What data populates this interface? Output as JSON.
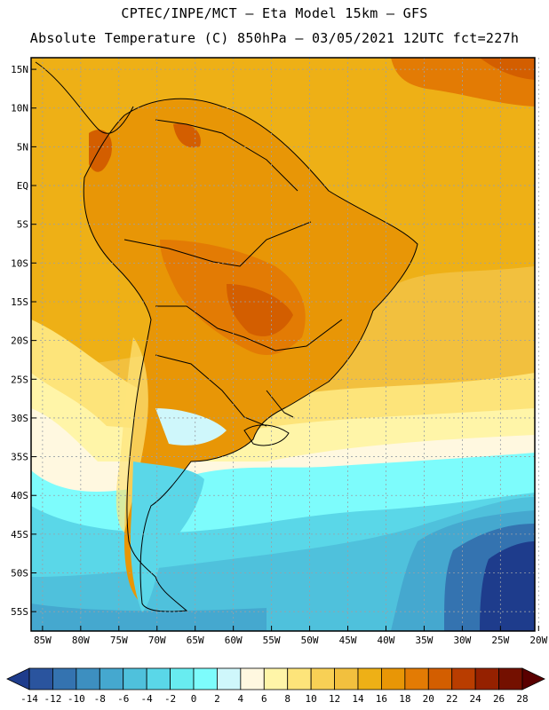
{
  "header": {
    "line1": "CPTEC/INPE/MCT –  Eta Model 15km – GFS",
    "line2": "Absolute Temperature (C) 850hPa – 03/05/2021 12UTC fct=227h"
  },
  "map": {
    "lat_labels": [
      "15N",
      "10N",
      "5N",
      "EQ",
      "5S",
      "10S",
      "15S",
      "20S",
      "25S",
      "30S",
      "35S",
      "40S",
      "45S",
      "50S",
      "55S"
    ],
    "lon_labels": [
      "85W",
      "80W",
      "75W",
      "70W",
      "65W",
      "60W",
      "55W",
      "50W",
      "45W",
      "40W",
      "35W",
      "30W",
      "25W",
      "20W"
    ],
    "lat_range": [
      16.5,
      -57.5
    ],
    "lon_range": [
      -86.5,
      -20.5
    ]
  },
  "colorbar": {
    "ticks": [
      "-14",
      "-12",
      "-10",
      "-8",
      "-6",
      "-4",
      "-2",
      "0",
      "2",
      "4",
      "6",
      "8",
      "10",
      "12",
      "14",
      "16",
      "18",
      "20",
      "22",
      "24",
      "26",
      "28"
    ],
    "colors": [
      "#1e3c8c",
      "#2a549e",
      "#3473b0",
      "#3d8fc0",
      "#45a8cf",
      "#4fc1dc",
      "#5ad7e8",
      "#68ecf0",
      "#7dfcfc",
      "#cff7fb",
      "#fff8e0",
      "#fff5a8",
      "#fde47a",
      "#f8d055",
      "#f2c03e",
      "#eeb016",
      "#e89606",
      "#e37b04",
      "#d35e00",
      "#b93d00",
      "#952100",
      "#741000",
      "#5a0000"
    ],
    "ticks_full": [
      "-14",
      "-12",
      "-10",
      "-8",
      "-6",
      "-4",
      "-2",
      "0",
      "2",
      "4",
      "6",
      "8",
      "10",
      "12",
      "14",
      "16",
      "18",
      "20",
      "22",
      "24",
      "26",
      "28"
    ]
  },
  "colors": {
    "ocean_warm": "#f2c03e",
    "land_hot": "#e89606",
    "highland": "#d35e00",
    "south_cold": "#45a8cf",
    "far_cold": "#1e3c8c",
    "cream": "#fff8e0"
  }
}
